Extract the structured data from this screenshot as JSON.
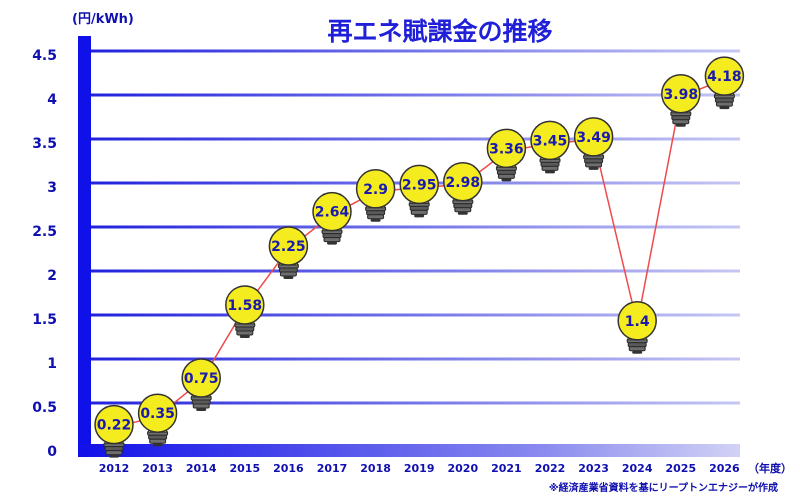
{
  "chart_data": {
    "type": "line",
    "title": "再エネ賦課金の推移",
    "ylabel": "(円/kWh)",
    "xlabel": "（年度）",
    "categories": [
      "2012",
      "2013",
      "2014",
      "2015",
      "2016",
      "2017",
      "2018",
      "2019",
      "2020",
      "2021",
      "2022",
      "2023",
      "2024",
      "2025",
      "2026"
    ],
    "values": [
      0.22,
      0.35,
      0.75,
      1.58,
      2.25,
      2.64,
      2.9,
      2.95,
      2.98,
      3.36,
      3.45,
      3.49,
      1.4,
      3.98,
      4.18
    ],
    "ylim": [
      0,
      4.5
    ],
    "yticks": [
      "0",
      "0.5",
      "1",
      "1.5",
      "2",
      "2.5",
      "3",
      "3.5",
      "4",
      "4.5"
    ],
    "grid": true,
    "colors": {
      "line": "#ef4a4a",
      "bulb": "#f5ec1f",
      "axis": "#1010e8",
      "title": "#2020d8"
    },
    "marker": "lightbulb-icon",
    "source": "※経済産業省資料を基にリープトンエナジーが作成"
  }
}
